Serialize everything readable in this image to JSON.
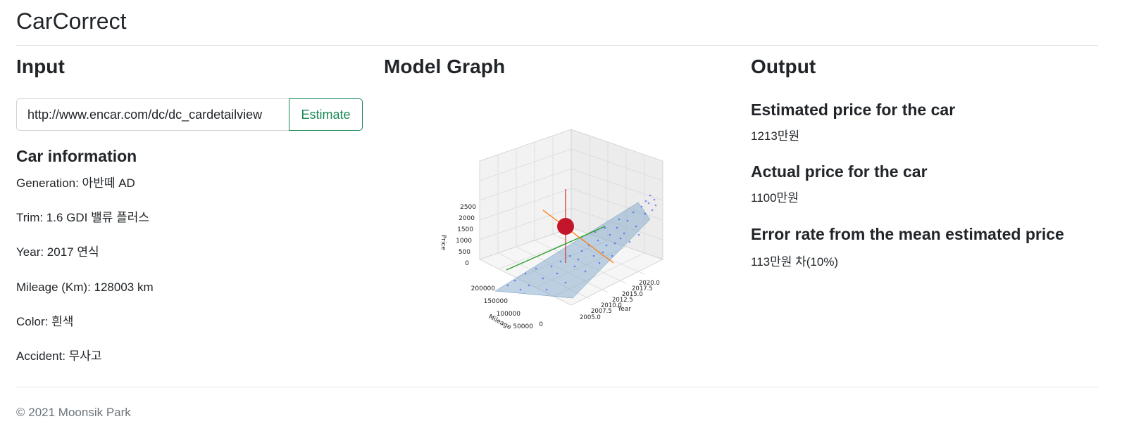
{
  "brand": "CarCorrect",
  "input": {
    "heading": "Input",
    "url_value": "http://www.encar.com/dc/dc_cardetailview",
    "estimate_label": "Estimate",
    "car_info_heading": "Car information",
    "fields": {
      "generation": "Generation: 아반떼 AD",
      "trim": "Trim: 1.6 GDI 밸류 플러스",
      "year": "Year: 2017 연식",
      "mileage": "Mileage (Km): 128003 km",
      "color": "Color: 흰색",
      "accident": "Accident: 무사고"
    }
  },
  "graph": {
    "heading": "Model Graph",
    "price_label": "Price",
    "mileage_label": "Mileage",
    "year_label": "Year",
    "price_ticks": [
      "2500",
      "2000",
      "1500",
      "1000",
      "500",
      "0"
    ],
    "mileage_ticks": [
      "200000",
      "150000",
      "100000",
      "50000",
      "0"
    ],
    "year_ticks": [
      "2020.0",
      "2017.5",
      "2015.0",
      "2012.5",
      "2010.0",
      "2007.5",
      "2005.0"
    ]
  },
  "output": {
    "heading": "Output",
    "estimated_heading": "Estimated price for the car",
    "estimated_value": "1213만원",
    "actual_heading": "Actual price for the car",
    "actual_value": "1100만원",
    "error_heading": "Error rate from the mean estimated price",
    "error_value": "113만원 차(10%)"
  },
  "footer": "© 2021 Moonsik Park",
  "colors": {
    "accent": "#198754",
    "marker": "#c4162a",
    "plane": "#7fa8c9",
    "points": "#2a3bff"
  }
}
